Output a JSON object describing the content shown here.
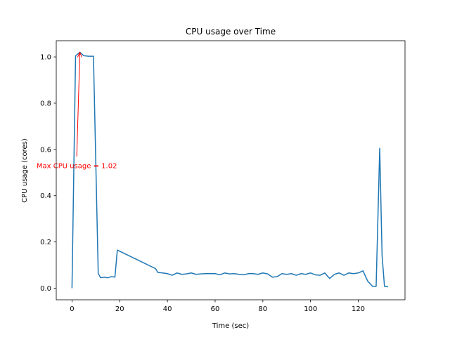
{
  "chart_data": {
    "type": "line",
    "title": "CPU usage over Time",
    "xlabel": "Time (sec)",
    "ylabel": "CPU usage (cores)",
    "xlim": [
      -6.6,
      139.6
    ],
    "ylim": [
      -0.05,
      1.07
    ],
    "xticks": [
      0,
      20,
      40,
      60,
      80,
      100,
      120
    ],
    "yticks": [
      0.0,
      0.2,
      0.4,
      0.6,
      0.8,
      1.0
    ],
    "xtick_labels": [
      "0",
      "20",
      "40",
      "60",
      "80",
      "100",
      "120"
    ],
    "ytick_labels": [
      "0.0",
      "0.2",
      "0.4",
      "0.6",
      "0.8",
      "1.0"
    ],
    "grid": false,
    "series": [
      {
        "color": "#1f77b4",
        "x": [
          0,
          1.5,
          3.3,
          5,
          7,
          9,
          11,
          12,
          13.5,
          15,
          16.5,
          18,
          19,
          25,
          30,
          35,
          36,
          38,
          40,
          42,
          44,
          46,
          48,
          50,
          52,
          54,
          56,
          58,
          60,
          62,
          64,
          66,
          68,
          70,
          72,
          74,
          76,
          78,
          80,
          82,
          84,
          86,
          88,
          90,
          92,
          94,
          96,
          98,
          100,
          102,
          104,
          106,
          108,
          110,
          112,
          114,
          116,
          118,
          120,
          122,
          124,
          126,
          127.5,
          129,
          130,
          131,
          132.5
        ],
        "y": [
          0.0,
          1.005,
          1.02,
          1.005,
          1.003,
          1.003,
          0.064,
          0.045,
          0.048,
          0.045,
          0.05,
          0.048,
          0.165,
          0.135,
          0.11,
          0.085,
          0.068,
          0.066,
          0.063,
          0.056,
          0.066,
          0.06,
          0.062,
          0.066,
          0.06,
          0.062,
          0.063,
          0.063,
          0.063,
          0.058,
          0.066,
          0.062,
          0.063,
          0.06,
          0.058,
          0.063,
          0.063,
          0.06,
          0.066,
          0.062,
          0.048,
          0.05,
          0.063,
          0.06,
          0.063,
          0.056,
          0.063,
          0.06,
          0.066,
          0.058,
          0.056,
          0.066,
          0.042,
          0.06,
          0.066,
          0.056,
          0.066,
          0.063,
          0.066,
          0.075,
          0.03,
          0.008,
          0.008,
          0.605,
          0.14,
          0.008,
          0.006
        ]
      }
    ],
    "annotation": {
      "text": "Max CPU usage = 1.02",
      "color": "#ff0000",
      "point": [
        3.3,
        1.02
      ],
      "text_pos": [
        2,
        0.57
      ]
    }
  }
}
